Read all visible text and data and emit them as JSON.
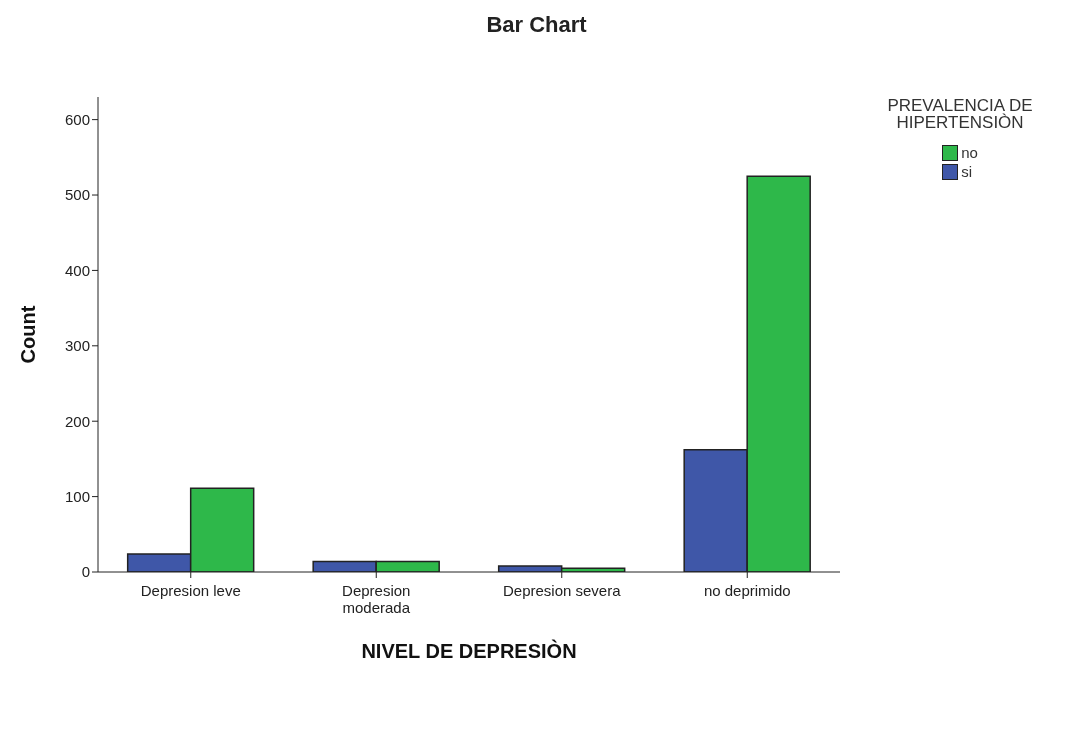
{
  "chart_data": {
    "type": "bar",
    "title": "Bar Chart",
    "xlabel": "NIVEL DE DEPRESIÒN",
    "ylabel": "Count",
    "legend_title": "PREVALENCIA DE HIPERTENSIÒN",
    "categories": [
      "Depresion leve",
      "Depresion moderada",
      "Depresion severa",
      "no deprimido"
    ],
    "series": [
      {
        "name": "si",
        "color": "#3f57a8",
        "values": [
          24,
          14,
          8,
          162
        ]
      },
      {
        "name": "no",
        "color": "#2eb84a",
        "values": [
          111,
          14,
          5,
          525
        ]
      }
    ],
    "ylim": [
      0,
      630
    ],
    "yticks": [
      0,
      100,
      200,
      300,
      400,
      500,
      600
    ],
    "grid": false,
    "legend": "right"
  }
}
